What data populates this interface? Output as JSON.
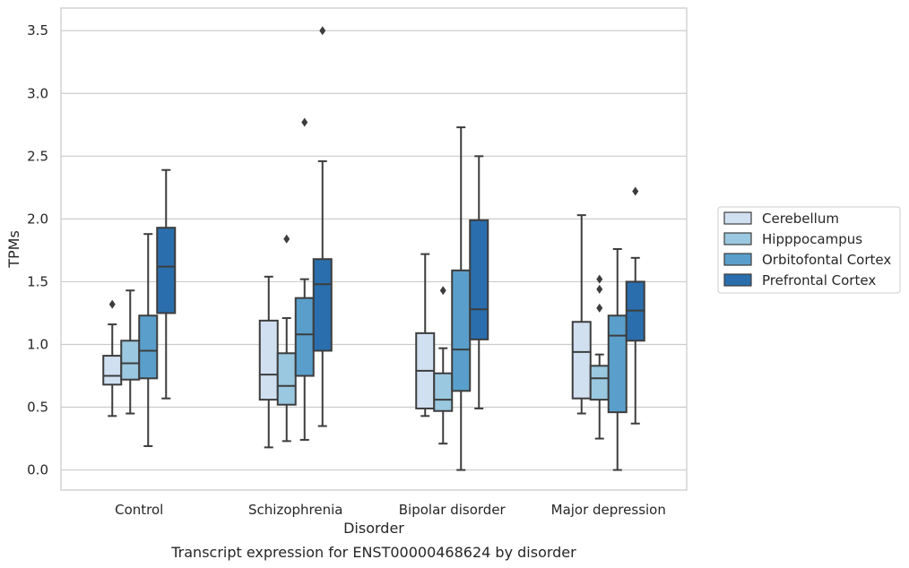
{
  "chart_data": {
    "type": "boxplot",
    "title": "",
    "caption": "Transcript expression for ENST00000468624 by disorder",
    "xlabel": "Disorder",
    "ylabel": "TPMs",
    "ylim": [
      -0.16,
      3.68
    ],
    "yticks": [
      "0.0",
      "0.5",
      "1.0",
      "1.5",
      "2.0",
      "2.5",
      "3.0",
      "3.5"
    ],
    "grid": "horizontal",
    "legend_position": "right",
    "categories": [
      "Control",
      "Schizophrenia",
      "Bipolar disorder",
      "Major depression"
    ],
    "series": [
      {
        "name": "Cerebellum",
        "color": "#d1e0f1",
        "boxes": [
          {
            "whisker_low": 0.43,
            "q1": 0.68,
            "median": 0.75,
            "q3": 0.91,
            "whisker_high": 1.16,
            "outliers": [
              1.32
            ]
          },
          {
            "whisker_low": 0.18,
            "q1": 0.56,
            "median": 0.76,
            "q3": 1.19,
            "whisker_high": 1.54,
            "outliers": []
          },
          {
            "whisker_low": 0.43,
            "q1": 0.49,
            "median": 0.79,
            "q3": 1.09,
            "whisker_high": 1.72,
            "outliers": []
          },
          {
            "whisker_low": 0.45,
            "q1": 0.57,
            "median": 0.94,
            "q3": 1.18,
            "whisker_high": 2.03,
            "outliers": []
          }
        ]
      },
      {
        "name": "Hipppocampus",
        "color": "#9ac8e0",
        "boxes": [
          {
            "whisker_low": 0.45,
            "q1": 0.72,
            "median": 0.85,
            "q3": 1.03,
            "whisker_high": 1.43,
            "outliers": []
          },
          {
            "whisker_low": 0.23,
            "q1": 0.52,
            "median": 0.67,
            "q3": 0.93,
            "whisker_high": 1.21,
            "outliers": [
              1.84
            ]
          },
          {
            "whisker_low": 0.21,
            "q1": 0.47,
            "median": 0.56,
            "q3": 0.77,
            "whisker_high": 0.97,
            "outliers": [
              1.43
            ]
          },
          {
            "whisker_low": 0.25,
            "q1": 0.56,
            "median": 0.73,
            "q3": 0.83,
            "whisker_high": 0.92,
            "outliers": [
              1.52,
              1.44,
              1.29
            ]
          }
        ]
      },
      {
        "name": "Orbitofontal Cortex",
        "color": "#5a9fcc",
        "boxes": [
          {
            "whisker_low": 0.19,
            "q1": 0.73,
            "median": 0.95,
            "q3": 1.23,
            "whisker_high": 1.88,
            "outliers": []
          },
          {
            "whisker_low": 0.24,
            "q1": 0.75,
            "median": 1.08,
            "q3": 1.37,
            "whisker_high": 1.52,
            "outliers": [
              2.77
            ]
          },
          {
            "whisker_low": 0.0,
            "q1": 0.63,
            "median": 0.96,
            "q3": 1.59,
            "whisker_high": 2.73,
            "outliers": []
          },
          {
            "whisker_low": 0.0,
            "q1": 0.46,
            "median": 1.07,
            "q3": 1.23,
            "whisker_high": 1.76,
            "outliers": []
          }
        ]
      },
      {
        "name": "Prefrontal Cortex",
        "color": "#2a6ead",
        "boxes": [
          {
            "whisker_low": 0.57,
            "q1": 1.25,
            "median": 1.62,
            "q3": 1.93,
            "whisker_high": 2.39,
            "outliers": []
          },
          {
            "whisker_low": 0.35,
            "q1": 0.95,
            "median": 1.48,
            "q3": 1.68,
            "whisker_high": 2.46,
            "outliers": [
              3.5
            ]
          },
          {
            "whisker_low": 0.49,
            "q1": 1.04,
            "median": 1.28,
            "q3": 1.99,
            "whisker_high": 2.5,
            "outliers": []
          },
          {
            "whisker_low": 0.37,
            "q1": 1.03,
            "median": 1.27,
            "q3": 1.5,
            "whisker_high": 1.69,
            "outliers": [
              2.22
            ]
          }
        ]
      }
    ]
  }
}
